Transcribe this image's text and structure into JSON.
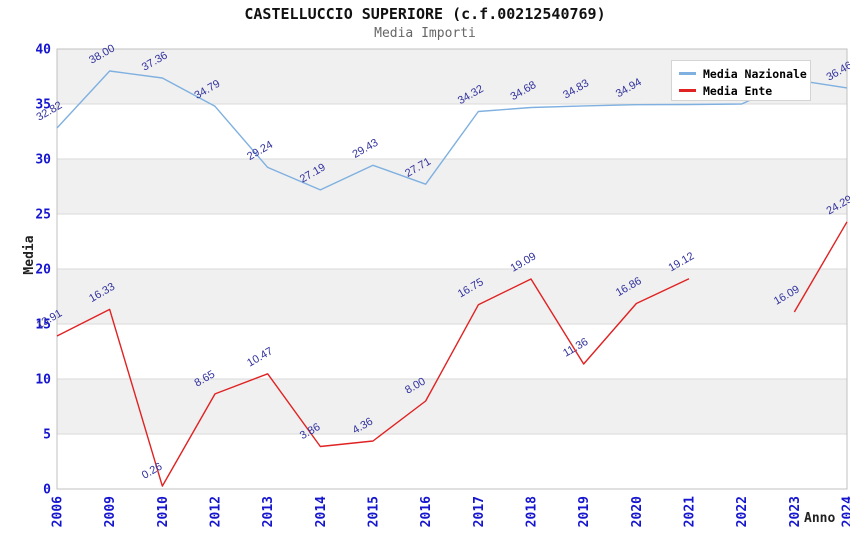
{
  "chart_data": {
    "type": "line",
    "title": "CASTELLUCCIO SUPERIORE (c.f.00212540769)",
    "subtitle": "Media Importi",
    "xlabel": "Anno",
    "ylabel": "Media",
    "ylim": [
      0,
      40
    ],
    "ytick_step": 5,
    "grid": "horizontal gridlines with alternating gray bands",
    "legend_position": "top-right",
    "categories": [
      "2006",
      "2009",
      "2010",
      "2012",
      "2013",
      "2014",
      "2015",
      "2016",
      "2017",
      "2018",
      "2019",
      "2020",
      "2021",
      "2022",
      "2023",
      "2024"
    ],
    "series": [
      {
        "name": "Media Nazionale",
        "color": "#7fb0e0",
        "values": [
          32.82,
          38.0,
          37.36,
          34.79,
          29.24,
          27.19,
          29.43,
          27.71,
          34.32,
          34.68,
          34.83,
          34.94,
          34.95,
          35.0,
          37.2,
          36.46
        ],
        "point_labels": [
          "32.82",
          "38.00",
          "37.36",
          "34.79",
          "29.24",
          "27.19",
          "29.43",
          "27.71",
          "34.32",
          "34.68",
          "34.83",
          "34.94",
          "",
          "",
          "",
          "36.46"
        ]
      },
      {
        "name": "Media Ente",
        "color": "#e02222",
        "values": [
          13.91,
          16.33,
          0.26,
          8.65,
          10.47,
          3.86,
          4.36,
          8.0,
          16.75,
          19.09,
          11.36,
          16.86,
          19.12,
          null,
          16.09,
          24.29
        ],
        "point_labels": [
          "13.91",
          "16.33",
          "0.26",
          "8.65",
          "10.47",
          "3.86",
          "4.36",
          "8.00",
          "16.75",
          "19.09",
          "11.36",
          "16.86",
          "19.12",
          "",
          "16.09",
          "24.29"
        ]
      }
    ]
  },
  "colors": {
    "tick_label": "#1515d0",
    "point_label": "#32329e",
    "band_gray": "#f0f0f0",
    "grid_line": "#dadada",
    "plot_border": "#c0c0c0",
    "title": "#111111",
    "subtitle": "#666666",
    "background": "#ffffff"
  }
}
